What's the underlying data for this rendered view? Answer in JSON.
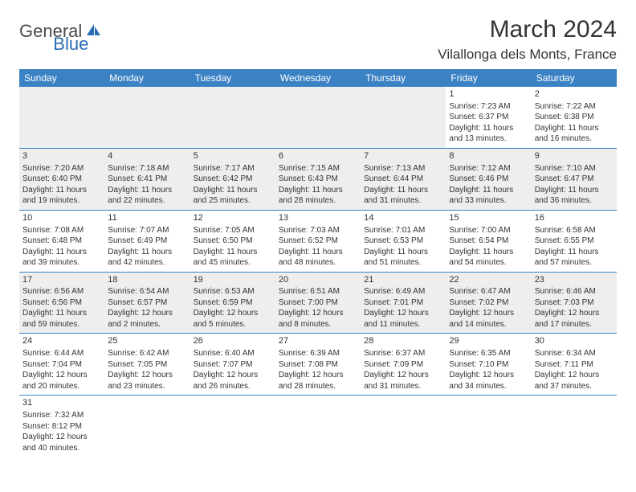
{
  "logo": {
    "general": "General",
    "blue": "Blue"
  },
  "title": "March 2024",
  "location": "Vilallonga dels Monts, France",
  "colors": {
    "header_bg": "#3b82c4",
    "header_text": "#ffffff",
    "row_gray": "#eeeeee",
    "row_white": "#ffffff",
    "border": "#3b82c4",
    "logo_blue": "#2a6db5",
    "text": "#333333"
  },
  "weekdays": [
    "Sunday",
    "Monday",
    "Tuesday",
    "Wednesday",
    "Thursday",
    "Friday",
    "Saturday"
  ],
  "weeks": [
    [
      null,
      null,
      null,
      null,
      null,
      {
        "n": "1",
        "sr": "Sunrise: 7:23 AM",
        "ss": "Sunset: 6:37 PM",
        "d1": "Daylight: 11 hours",
        "d2": "and 13 minutes."
      },
      {
        "n": "2",
        "sr": "Sunrise: 7:22 AM",
        "ss": "Sunset: 6:38 PM",
        "d1": "Daylight: 11 hours",
        "d2": "and 16 minutes."
      }
    ],
    [
      {
        "n": "3",
        "sr": "Sunrise: 7:20 AM",
        "ss": "Sunset: 6:40 PM",
        "d1": "Daylight: 11 hours",
        "d2": "and 19 minutes."
      },
      {
        "n": "4",
        "sr": "Sunrise: 7:18 AM",
        "ss": "Sunset: 6:41 PM",
        "d1": "Daylight: 11 hours",
        "d2": "and 22 minutes."
      },
      {
        "n": "5",
        "sr": "Sunrise: 7:17 AM",
        "ss": "Sunset: 6:42 PM",
        "d1": "Daylight: 11 hours",
        "d2": "and 25 minutes."
      },
      {
        "n": "6",
        "sr": "Sunrise: 7:15 AM",
        "ss": "Sunset: 6:43 PM",
        "d1": "Daylight: 11 hours",
        "d2": "and 28 minutes."
      },
      {
        "n": "7",
        "sr": "Sunrise: 7:13 AM",
        "ss": "Sunset: 6:44 PM",
        "d1": "Daylight: 11 hours",
        "d2": "and 31 minutes."
      },
      {
        "n": "8",
        "sr": "Sunrise: 7:12 AM",
        "ss": "Sunset: 6:46 PM",
        "d1": "Daylight: 11 hours",
        "d2": "and 33 minutes."
      },
      {
        "n": "9",
        "sr": "Sunrise: 7:10 AM",
        "ss": "Sunset: 6:47 PM",
        "d1": "Daylight: 11 hours",
        "d2": "and 36 minutes."
      }
    ],
    [
      {
        "n": "10",
        "sr": "Sunrise: 7:08 AM",
        "ss": "Sunset: 6:48 PM",
        "d1": "Daylight: 11 hours",
        "d2": "and 39 minutes."
      },
      {
        "n": "11",
        "sr": "Sunrise: 7:07 AM",
        "ss": "Sunset: 6:49 PM",
        "d1": "Daylight: 11 hours",
        "d2": "and 42 minutes."
      },
      {
        "n": "12",
        "sr": "Sunrise: 7:05 AM",
        "ss": "Sunset: 6:50 PM",
        "d1": "Daylight: 11 hours",
        "d2": "and 45 minutes."
      },
      {
        "n": "13",
        "sr": "Sunrise: 7:03 AM",
        "ss": "Sunset: 6:52 PM",
        "d1": "Daylight: 11 hours",
        "d2": "and 48 minutes."
      },
      {
        "n": "14",
        "sr": "Sunrise: 7:01 AM",
        "ss": "Sunset: 6:53 PM",
        "d1": "Daylight: 11 hours",
        "d2": "and 51 minutes."
      },
      {
        "n": "15",
        "sr": "Sunrise: 7:00 AM",
        "ss": "Sunset: 6:54 PM",
        "d1": "Daylight: 11 hours",
        "d2": "and 54 minutes."
      },
      {
        "n": "16",
        "sr": "Sunrise: 6:58 AM",
        "ss": "Sunset: 6:55 PM",
        "d1": "Daylight: 11 hours",
        "d2": "and 57 minutes."
      }
    ],
    [
      {
        "n": "17",
        "sr": "Sunrise: 6:56 AM",
        "ss": "Sunset: 6:56 PM",
        "d1": "Daylight: 11 hours",
        "d2": "and 59 minutes."
      },
      {
        "n": "18",
        "sr": "Sunrise: 6:54 AM",
        "ss": "Sunset: 6:57 PM",
        "d1": "Daylight: 12 hours",
        "d2": "and 2 minutes."
      },
      {
        "n": "19",
        "sr": "Sunrise: 6:53 AM",
        "ss": "Sunset: 6:59 PM",
        "d1": "Daylight: 12 hours",
        "d2": "and 5 minutes."
      },
      {
        "n": "20",
        "sr": "Sunrise: 6:51 AM",
        "ss": "Sunset: 7:00 PM",
        "d1": "Daylight: 12 hours",
        "d2": "and 8 minutes."
      },
      {
        "n": "21",
        "sr": "Sunrise: 6:49 AM",
        "ss": "Sunset: 7:01 PM",
        "d1": "Daylight: 12 hours",
        "d2": "and 11 minutes."
      },
      {
        "n": "22",
        "sr": "Sunrise: 6:47 AM",
        "ss": "Sunset: 7:02 PM",
        "d1": "Daylight: 12 hours",
        "d2": "and 14 minutes."
      },
      {
        "n": "23",
        "sr": "Sunrise: 6:46 AM",
        "ss": "Sunset: 7:03 PM",
        "d1": "Daylight: 12 hours",
        "d2": "and 17 minutes."
      }
    ],
    [
      {
        "n": "24",
        "sr": "Sunrise: 6:44 AM",
        "ss": "Sunset: 7:04 PM",
        "d1": "Daylight: 12 hours",
        "d2": "and 20 minutes."
      },
      {
        "n": "25",
        "sr": "Sunrise: 6:42 AM",
        "ss": "Sunset: 7:05 PM",
        "d1": "Daylight: 12 hours",
        "d2": "and 23 minutes."
      },
      {
        "n": "26",
        "sr": "Sunrise: 6:40 AM",
        "ss": "Sunset: 7:07 PM",
        "d1": "Daylight: 12 hours",
        "d2": "and 26 minutes."
      },
      {
        "n": "27",
        "sr": "Sunrise: 6:39 AM",
        "ss": "Sunset: 7:08 PM",
        "d1": "Daylight: 12 hours",
        "d2": "and 28 minutes."
      },
      {
        "n": "28",
        "sr": "Sunrise: 6:37 AM",
        "ss": "Sunset: 7:09 PM",
        "d1": "Daylight: 12 hours",
        "d2": "and 31 minutes."
      },
      {
        "n": "29",
        "sr": "Sunrise: 6:35 AM",
        "ss": "Sunset: 7:10 PM",
        "d1": "Daylight: 12 hours",
        "d2": "and 34 minutes."
      },
      {
        "n": "30",
        "sr": "Sunrise: 6:34 AM",
        "ss": "Sunset: 7:11 PM",
        "d1": "Daylight: 12 hours",
        "d2": "and 37 minutes."
      }
    ],
    [
      {
        "n": "31",
        "sr": "Sunrise: 7:32 AM",
        "ss": "Sunset: 8:12 PM",
        "d1": "Daylight: 12 hours",
        "d2": "and 40 minutes."
      },
      null,
      null,
      null,
      null,
      null,
      null
    ]
  ]
}
